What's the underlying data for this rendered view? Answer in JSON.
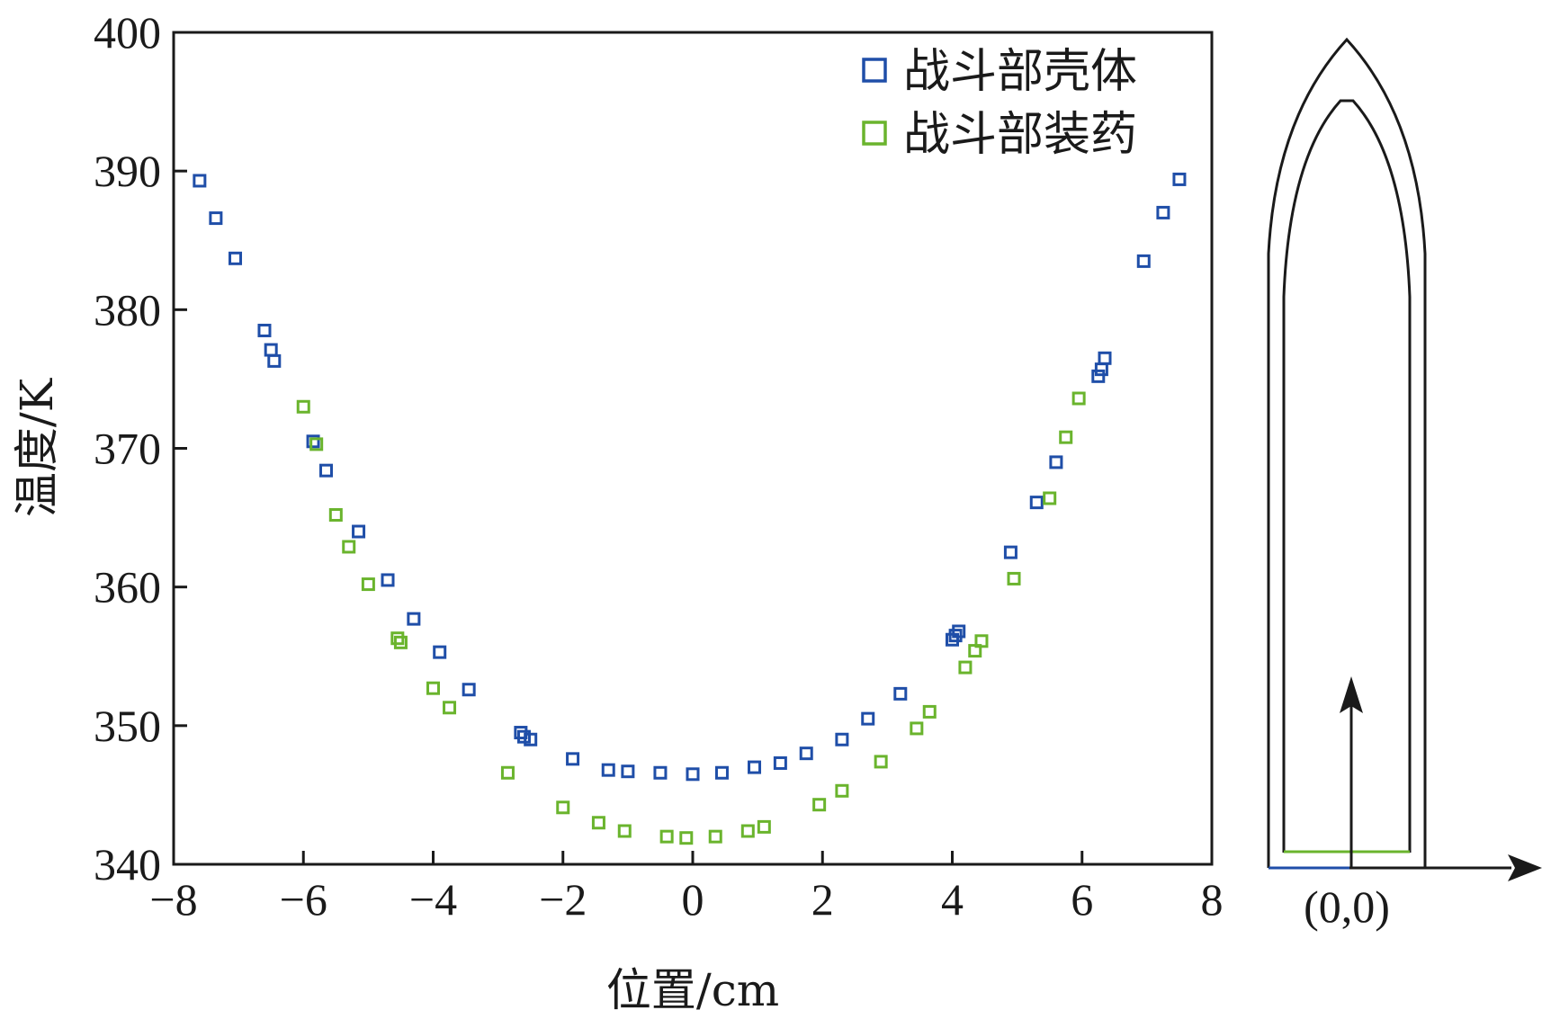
{
  "chart_data": {
    "type": "scatter",
    "title": "",
    "xlabel": "位置/cm",
    "ylabel": "温度/K",
    "xlim": [
      -8,
      8
    ],
    "ylim": [
      340,
      400
    ],
    "xticks": [
      "−8",
      "−6",
      "−4",
      "−2",
      "0",
      "2",
      "4",
      "6",
      "8"
    ],
    "yticks": [
      "340",
      "350",
      "360",
      "370",
      "380",
      "390",
      "400"
    ],
    "grid": false,
    "legend_position": "top-right",
    "series": [
      {
        "name": "战斗部壳体",
        "color": "#1f4ea8",
        "points": [
          [
            -7.6,
            389.3
          ],
          [
            -7.35,
            386.6
          ],
          [
            -7.05,
            383.7
          ],
          [
            -6.6,
            378.5
          ],
          [
            -6.5,
            377.1
          ],
          [
            -6.45,
            376.3
          ],
          [
            -5.85,
            370.5
          ],
          [
            -5.65,
            368.4
          ],
          [
            -5.15,
            364.0
          ],
          [
            -4.7,
            360.5
          ],
          [
            -4.3,
            357.7
          ],
          [
            -3.9,
            355.3
          ],
          [
            -3.45,
            352.6
          ],
          [
            -2.65,
            349.5
          ],
          [
            -2.6,
            349.2
          ],
          [
            -2.5,
            349.0
          ],
          [
            -1.85,
            347.6
          ],
          [
            -1.3,
            346.8
          ],
          [
            -1.0,
            346.7
          ],
          [
            -0.5,
            346.6
          ],
          [
            0.0,
            346.5
          ],
          [
            0.45,
            346.6
          ],
          [
            0.95,
            347.0
          ],
          [
            1.35,
            347.3
          ],
          [
            1.75,
            348.0
          ],
          [
            2.3,
            349.0
          ],
          [
            2.7,
            350.5
          ],
          [
            3.2,
            352.3
          ],
          [
            4.0,
            356.2
          ],
          [
            4.05,
            356.5
          ],
          [
            4.1,
            356.8
          ],
          [
            4.9,
            362.5
          ],
          [
            5.3,
            366.1
          ],
          [
            5.6,
            369.0
          ],
          [
            6.25,
            375.2
          ],
          [
            6.3,
            375.7
          ],
          [
            6.35,
            376.5
          ],
          [
            6.95,
            383.5
          ],
          [
            7.25,
            387.0
          ],
          [
            7.5,
            389.4
          ]
        ]
      },
      {
        "name": "战斗部装药",
        "color": "#6ab42d",
        "points": [
          [
            -6.0,
            373.0
          ],
          [
            -5.8,
            370.3
          ],
          [
            -5.5,
            365.2
          ],
          [
            -5.3,
            362.9
          ],
          [
            -5.0,
            360.2
          ],
          [
            -4.55,
            356.3
          ],
          [
            -4.5,
            356.0
          ],
          [
            -4.0,
            352.7
          ],
          [
            -3.75,
            351.3
          ],
          [
            -2.85,
            346.6
          ],
          [
            -2.0,
            344.1
          ],
          [
            -1.45,
            343.0
          ],
          [
            -1.05,
            342.4
          ],
          [
            -0.4,
            342.0
          ],
          [
            -0.1,
            341.9
          ],
          [
            0.35,
            342.0
          ],
          [
            0.85,
            342.4
          ],
          [
            1.1,
            342.7
          ],
          [
            1.95,
            344.3
          ],
          [
            2.3,
            345.3
          ],
          [
            2.9,
            347.4
          ],
          [
            3.45,
            349.8
          ],
          [
            3.65,
            351.0
          ],
          [
            4.2,
            354.2
          ],
          [
            4.35,
            355.4
          ],
          [
            4.45,
            356.1
          ],
          [
            4.95,
            360.6
          ],
          [
            5.5,
            366.4
          ],
          [
            5.75,
            370.8
          ],
          [
            5.95,
            373.6
          ]
        ]
      }
    ],
    "inset": {
      "origin_label": "(0,0)",
      "outer_color": "#1a1a1a",
      "inner_line_color": "#6ab42d",
      "base_line_color": "#1f4ea8"
    }
  }
}
